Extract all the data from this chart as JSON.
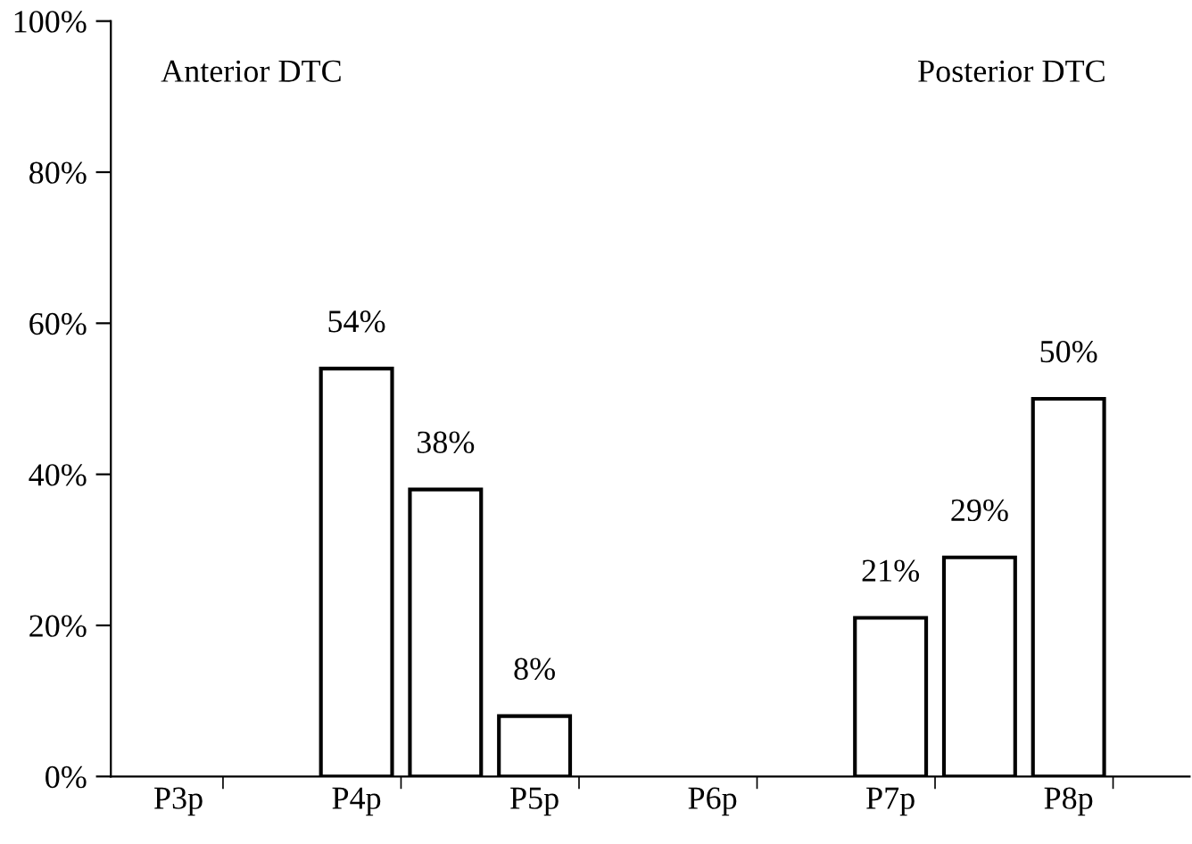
{
  "chart_data": {
    "type": "bar",
    "categories": [
      "P3p",
      null,
      "P4p",
      null,
      "P5p",
      null,
      "P6p",
      null,
      "P7p",
      null,
      "P8p",
      null
    ],
    "values": [
      null,
      null,
      54,
      38,
      8,
      null,
      null,
      null,
      21,
      29,
      50,
      null
    ],
    "value_labels": [
      null,
      null,
      "54%",
      "38%",
      "8%",
      null,
      null,
      null,
      "21%",
      "29%",
      "50%",
      null
    ],
    "color": "#ffffff",
    "ylim": [
      0,
      100
    ],
    "yticks": [
      {
        "value": 0,
        "label": "0%"
      },
      {
        "value": 20,
        "label": "20%"
      },
      {
        "value": 40,
        "label": "40%"
      },
      {
        "value": 60,
        "label": "60%"
      },
      {
        "value": 80,
        "label": "80%"
      },
      {
        "value": 100,
        "label": "100%"
      }
    ],
    "annotations": [
      "Anterior DTC",
      "Posterior DTC"
    ],
    "grid": false,
    "legend": false
  }
}
